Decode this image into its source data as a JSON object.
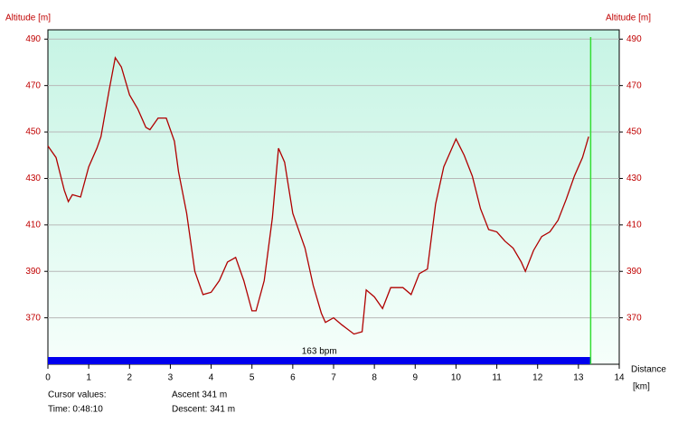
{
  "chart_data": {
    "type": "line",
    "y_label": "Altitude [m]",
    "y2_label": "Altitude [m]",
    "x_label": "Distance",
    "x_unit": "[km]",
    "x": [
      0,
      0.2,
      0.4,
      0.5,
      0.6,
      0.8,
      1.0,
      1.2,
      1.3,
      1.5,
      1.65,
      1.8,
      2.0,
      2.2,
      2.4,
      2.5,
      2.7,
      2.9,
      3.1,
      3.2,
      3.4,
      3.6,
      3.8,
      4.0,
      4.2,
      4.4,
      4.6,
      4.8,
      5.0,
      5.1,
      5.3,
      5.5,
      5.65,
      5.8,
      6.0,
      6.3,
      6.5,
      6.7,
      6.8,
      7.0,
      7.2,
      7.5,
      7.7,
      7.8,
      8.0,
      8.2,
      8.4,
      8.7,
      8.9,
      9.1,
      9.3,
      9.5,
      9.7,
      9.9,
      10.0,
      10.2,
      10.4,
      10.6,
      10.8,
      11.0,
      11.2,
      11.4,
      11.6,
      11.7,
      11.9,
      12.1,
      12.3,
      12.5,
      12.7,
      12.9,
      13.1,
      13.25
    ],
    "values": [
      444,
      439,
      425,
      420,
      423,
      422,
      435,
      443,
      448,
      468,
      482,
      478,
      466,
      460,
      452,
      451,
      456,
      456,
      446,
      433,
      415,
      390,
      380,
      381,
      386,
      394,
      396,
      386,
      373,
      373,
      386,
      413,
      443,
      437,
      415,
      400,
      384,
      372,
      368,
      370,
      367,
      363,
      364,
      382,
      379,
      374,
      383,
      383,
      380,
      389,
      391,
      419,
      435,
      443,
      447,
      440,
      431,
      417,
      408,
      407,
      403,
      400,
      394,
      390,
      399,
      405,
      407,
      412,
      421,
      431,
      439,
      448
    ],
    "color": "#b00000",
    "xlim": [
      0,
      14
    ],
    "xticks": [
      0,
      1,
      2,
      3,
      4,
      5,
      6,
      7,
      8,
      9,
      10,
      11,
      12,
      13,
      14
    ],
    "ylim": [
      350,
      494
    ],
    "yticks": [
      370,
      390,
      410,
      430,
      450,
      470,
      490
    ],
    "grid": true,
    "cursor": 13.3,
    "cursor_color": "#33dd33",
    "hr_label": "163 bpm",
    "hr_color": "#0000ee",
    "footer": {
      "cursor_title": "Cursor values:",
      "time": "Time: 0:48:10",
      "ascent": "Ascent 341 m",
      "descent": "Descent: 341 m"
    }
  }
}
